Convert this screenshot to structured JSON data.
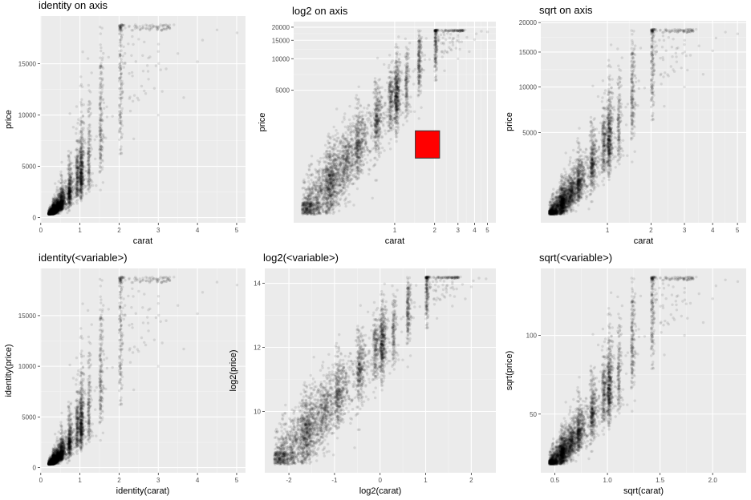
{
  "colors": {
    "panel_bg": "#ebebeb",
    "grid_major": "#ffffff",
    "grid_minor": "#f5f5f5",
    "point": "#000000",
    "marker_fill": "#ff0000",
    "marker_stroke": "#333333"
  },
  "chart_data": [
    {
      "type": "scatter",
      "title": "identity on axis",
      "xlabel": "carat",
      "ylabel": "price",
      "xscale": "identity",
      "yscale": "identity",
      "xlim": [
        0.2,
        5.01
      ],
      "ylim": [
        326,
        18823
      ],
      "xticks": [
        0,
        1,
        2,
        3,
        4,
        5
      ],
      "xtick_labels": [
        "0",
        "1",
        "2",
        "3",
        "4",
        "5"
      ],
      "yticks": [
        0,
        5000,
        10000,
        15000
      ],
      "ytick_labels": [
        "0",
        "5000",
        "10000",
        "15000"
      ],
      "grid": true,
      "point_alpha": 0.1
    },
    {
      "type": "scatter",
      "title": "log2 on axis",
      "xlabel": "carat",
      "ylabel": "price",
      "xscale": "log2",
      "yscale": "log2",
      "xlim": [
        0.2,
        5.01
      ],
      "ylim": [
        326,
        18823
      ],
      "xticks": [
        1,
        2,
        3,
        4,
        5
      ],
      "xtick_labels": [
        "1",
        "2",
        "3",
        "4",
        "5"
      ],
      "yticks": [
        5000,
        10000,
        15000,
        20000
      ],
      "ytick_labels": [
        "5000",
        "10000",
        "15000",
        "20000"
      ],
      "grid": true,
      "point_alpha": 0.1,
      "annotation": {
        "shape": "square",
        "fill": "#ff0000",
        "x": [
          1.43,
          2.18
        ],
        "y": [
          1125,
          2050
        ]
      }
    },
    {
      "type": "scatter",
      "title": "sqrt on axis",
      "xlabel": "carat",
      "ylabel": "price",
      "xscale": "sqrt",
      "yscale": "sqrt",
      "xlim": [
        0.2,
        5.01
      ],
      "ylim": [
        326,
        18823
      ],
      "xticks": [
        1,
        2,
        3,
        4,
        5
      ],
      "xtick_labels": [
        "1",
        "2",
        "3",
        "4",
        "5"
      ],
      "yticks": [
        5000,
        10000,
        15000,
        20000
      ],
      "ytick_labels": [
        "5000",
        "10000",
        "15000",
        "20000"
      ],
      "grid": true,
      "point_alpha": 0.1
    },
    {
      "type": "scatter",
      "title": "identity(<variable>)",
      "xlabel": "identity(carat)",
      "ylabel": "identity(price)",
      "xscale": "identity",
      "yscale": "identity",
      "xlim": [
        0.2,
        5.01
      ],
      "ylim": [
        326,
        18823
      ],
      "xticks": [
        0,
        1,
        2,
        3,
        4,
        5
      ],
      "xtick_labels": [
        "0",
        "1",
        "2",
        "3",
        "4",
        "5"
      ],
      "yticks": [
        0,
        5000,
        10000,
        15000
      ],
      "ytick_labels": [
        "0",
        "5000",
        "10000",
        "15000"
      ],
      "grid": true,
      "point_alpha": 0.1
    },
    {
      "type": "scatter",
      "title": "log2(<variable>)",
      "xlabel": "log2(carat)",
      "ylabel": "log2(price)",
      "xscale": "identity",
      "yscale": "identity",
      "xlim": [
        -2.32,
        2.33
      ],
      "ylim": [
        8.35,
        14.2
      ],
      "xticks": [
        -2,
        -1,
        0,
        1,
        2
      ],
      "xtick_labels": [
        "-2",
        "-1",
        "0",
        "1",
        "2"
      ],
      "yticks": [
        10,
        12,
        14
      ],
      "ytick_labels": [
        "10",
        "12",
        "14"
      ],
      "grid": true,
      "point_alpha": 0.1
    },
    {
      "type": "scatter",
      "title": "sqrt(<variable>)",
      "xlabel": "sqrt(carat)",
      "ylabel": "sqrt(price)",
      "xscale": "identity",
      "yscale": "identity",
      "xlim": [
        0.447,
        2.238
      ],
      "ylim": [
        18.06,
        137.2
      ],
      "xticks": [
        0.5,
        1.0,
        1.5,
        2.0
      ],
      "xtick_labels": [
        "0.5",
        "1.0",
        "1.5",
        "2.0"
      ],
      "yticks": [
        50,
        100
      ],
      "ytick_labels": [
        "50",
        "100"
      ],
      "grid": true,
      "point_alpha": 0.1
    }
  ]
}
